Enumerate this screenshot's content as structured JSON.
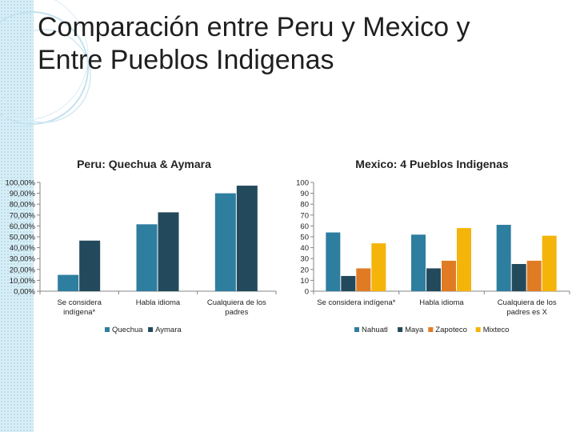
{
  "slide": {
    "title_line1": "Comparación entre Peru y Mexico y",
    "title_line2": "Entre Pueblos Indigenas"
  },
  "colors": {
    "quechua": "#2e7ea0",
    "aymara": "#234a5c",
    "nahuatl": "#2e7ea0",
    "maya": "#234a5c",
    "zapoteco": "#e07b24",
    "mixteco": "#f5b40a",
    "stripe": "#d8eef6"
  },
  "chart_data": [
    {
      "type": "bar",
      "title": "Peru: Quechua & Aymara",
      "categories": [
        "Se considera indígena*",
        "Habla idioma",
        "Cualquiera de los padres"
      ],
      "category_lines": [
        [
          "Se considera",
          "indígena*"
        ],
        [
          "Habla idioma"
        ],
        [
          "Cualquiera de los",
          "padres"
        ]
      ],
      "series": [
        {
          "name": "Quechua",
          "values": [
            15,
            61.5,
            90
          ]
        },
        {
          "name": "Aymara",
          "values": [
            46.5,
            72.5,
            97
          ]
        }
      ],
      "ylim": [
        0,
        100
      ],
      "yticks": [
        "0,00%",
        "10,00%",
        "20,00%",
        "30,00%",
        "40,00%",
        "50,00%",
        "60,00%",
        "70,00%",
        "80,00%",
        "90,00%",
        "100,00%"
      ],
      "legend_position": "bottom"
    },
    {
      "type": "bar",
      "title": "Mexico: 4 Pueblos Indigenas",
      "categories": [
        "Se considera indígena*",
        "Habla idioma",
        "Cualquiera de los padres es X"
      ],
      "category_lines": [
        [
          "Se considera indígena*"
        ],
        [
          "Habla idioma"
        ],
        [
          "Cualquiera de los",
          "padres es X"
        ]
      ],
      "series": [
        {
          "name": "Nahuatl",
          "values": [
            54,
            52,
            61
          ]
        },
        {
          "name": "Maya",
          "values": [
            14,
            21,
            25
          ]
        },
        {
          "name": "Zapoteco",
          "values": [
            21,
            28,
            28
          ]
        },
        {
          "name": "Mixteco",
          "values": [
            44,
            58,
            51
          ]
        }
      ],
      "ylim": [
        0,
        100
      ],
      "yticks": [
        "0",
        "10",
        "20",
        "30",
        "40",
        "50",
        "60",
        "70",
        "80",
        "90",
        "100"
      ],
      "legend_position": "bottom"
    }
  ]
}
